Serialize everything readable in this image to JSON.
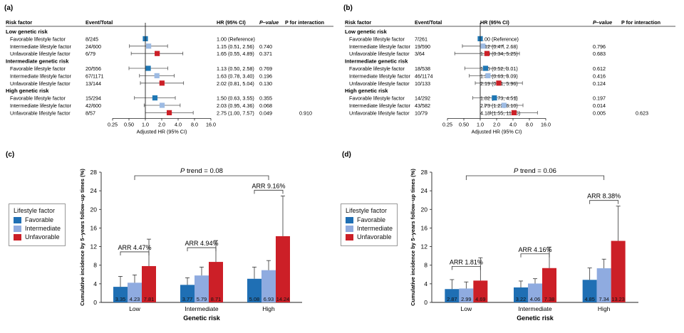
{
  "chart_data": [
    {
      "panel_label": "(a)",
      "type": "forest",
      "headers": {
        "risk_factor": "Risk factor",
        "events": "Event/Total",
        "hr": "HR (95% CI)",
        "p": "P–value",
        "pint": "P for interaction"
      },
      "xlabel": "Adjusted HR (95% CI)",
      "xscale": "log",
      "xticks": [
        "0.25",
        "0.50",
        "1.0",
        "2.0",
        "4.0",
        "8.0",
        "16.0"
      ],
      "xlim": [
        0.25,
        16
      ],
      "p_for_interaction": "0.910",
      "groups": [
        {
          "label": "Low genetic risk",
          "rows": [
            {
              "label": "Favorable lifestyle factor",
              "events": "8/245",
              "hr_text": "1.00 (Reference)",
              "p": "",
              "hr": 1.0,
              "lo": 1.0,
              "hi": 1.0,
              "color": "#1f77b4"
            },
            {
              "label": "Intermediate lifestyle factor",
              "events": "24/600",
              "hr_text": "1.15 (0.51, 2.56)",
              "p": "0.740",
              "hr": 1.15,
              "lo": 0.51,
              "hi": 2.56,
              "color": "#9dbbe3"
            },
            {
              "label": "Unfavorable lifestyle factor",
              "events": "6/79",
              "hr_text": "1.65 (0.55, 4.89)",
              "p": "0.371",
              "hr": 1.65,
              "lo": 0.55,
              "hi": 4.89,
              "color": "#cc2027"
            }
          ]
        },
        {
          "label": "Intermediate genetic risk",
          "rows": [
            {
              "label": "Favorable lifestyle factor",
              "events": "20/556",
              "hr_text": "1.13 (0.50, 2.58)",
              "p": "0.769",
              "hr": 1.13,
              "lo": 0.5,
              "hi": 2.58,
              "color": "#1f77b4"
            },
            {
              "label": "Intermediate lifestyle factor",
              "events": "67/1171",
              "hr_text": "1.63 (0.78, 3.40)",
              "p": "0.196",
              "hr": 1.63,
              "lo": 0.78,
              "hi": 3.4,
              "color": "#9dbbe3"
            },
            {
              "label": "Unfavorable lifestyle factor",
              "events": "13/144",
              "hr_text": "2.02 (0.81, 5.04)",
              "p": "0.130",
              "hr": 2.02,
              "lo": 0.81,
              "hi": 5.04,
              "color": "#cc2027"
            }
          ]
        },
        {
          "label": "High genetic risk",
          "rows": [
            {
              "label": "Favorable lifestyle factor",
              "events": "15/294",
              "hr_text": "1.50 (0.63, 3.55)",
              "p": "0.355",
              "hr": 1.5,
              "lo": 0.63,
              "hi": 3.55,
              "color": "#1f77b4"
            },
            {
              "label": "Intermediate lifestyle factor",
              "events": "42/600",
              "hr_text": "2.03 (0.95, 4.36)",
              "p": "0.068",
              "hr": 2.03,
              "lo": 0.95,
              "hi": 4.36,
              "color": "#9dbbe3"
            },
            {
              "label": "Unfavorable lifestyle factor",
              "events": "8/57",
              "hr_text": "2.75 (1.00, 7.57)",
              "p": "0.049",
              "hr": 2.75,
              "lo": 1.0,
              "hi": 7.57,
              "color": "#cc2027"
            }
          ]
        }
      ]
    },
    {
      "panel_label": "(b)",
      "type": "forest",
      "headers": {
        "risk_factor": "Risk factor",
        "events": "Event/Total",
        "hr": "HR (95% CI)",
        "p": "P–value",
        "pint": "P for interaction"
      },
      "xlabel": "Adjusted HR (95% CI)",
      "xscale": "log",
      "xticks": [
        "0.25",
        "0.50",
        "1.0",
        "2.0",
        "4.0",
        "8.0",
        "16.0"
      ],
      "xlim": [
        0.25,
        16
      ],
      "p_for_interaction": "0.623",
      "groups": [
        {
          "label": "Low genetic risk",
          "rows": [
            {
              "label": "Favorable lifestyle factor",
              "events": "7/261",
              "hr_text": "1.00 (Reference)",
              "p": "",
              "hr": 1.0,
              "lo": 1.0,
              "hi": 1.0,
              "color": "#1f77b4"
            },
            {
              "label": "Intermediate lifestyle factor",
              "events": "19/590",
              "hr_text": "1.12 (0.47, 2.68)",
              "p": "0.796",
              "hr": 1.12,
              "lo": 0.47,
              "hi": 2.68,
              "color": "#9dbbe3"
            },
            {
              "label": "Unfavorable lifestyle factor",
              "events": "3/64",
              "hr_text": "1.33 (0.34, 5.25)",
              "p": "0.683",
              "hr": 1.33,
              "lo": 0.34,
              "hi": 5.25,
              "color": "#cc2027"
            }
          ]
        },
        {
          "label": "Intermediate genetic risk",
          "rows": [
            {
              "label": "Favorable lifestyle factor",
              "events": "18/538",
              "hr_text": "1.25 (0.52, 3.01)",
              "p": "0.612",
              "hr": 1.25,
              "lo": 0.52,
              "hi": 3.01,
              "color": "#1f77b4"
            },
            {
              "label": "Intermediate lifestyle factor",
              "events": "46/1174",
              "hr_text": "1.39 (0.63, 3.09)",
              "p": "0.416",
              "hr": 1.39,
              "lo": 0.63,
              "hi": 3.09,
              "color": "#9dbbe3"
            },
            {
              "label": "Unfavorable lifestyle factor",
              "events": "10/133",
              "hr_text": "2.19 (0.81, 5.96)",
              "p": "0.124",
              "hr": 2.19,
              "lo": 0.81,
              "hi": 5.96,
              "color": "#cc2027"
            }
          ]
        },
        {
          "label": "High genetic risk",
          "rows": [
            {
              "label": "Favorable lifestyle factor",
              "events": "14/292",
              "hr_text": "1.82 (0.73, 4.51)",
              "p": "0.197",
              "hr": 1.82,
              "lo": 0.73,
              "hi": 4.51,
              "color": "#1f77b4"
            },
            {
              "label": "Intermediate lifestyle factor",
              "events": "43/582",
              "hr_text": "2.73 (1.22, 6.10)",
              "p": "0.014",
              "hr": 2.73,
              "lo": 1.22,
              "hi": 6.1,
              "color": "#9dbbe3"
            },
            {
              "label": "Unfavorable lifestyle factor",
              "events": "10/79",
              "hr_text": "4.18 (1.55, 11.25)",
              "p": "0.005",
              "hr": 4.18,
              "lo": 1.55,
              "hi": 11.25,
              "color": "#cc2027"
            }
          ]
        }
      ]
    },
    {
      "panel_label": "(c)",
      "type": "bar",
      "xlabel": "Genetic risk",
      "ylabel": "Cumulative incidence by 5–years follow–up times (%)",
      "ylim": [
        0,
        28
      ],
      "yticks": [
        0,
        4,
        8,
        12,
        16,
        20,
        24,
        28
      ],
      "categories": [
        "Low",
        "Intermediate",
        "High"
      ],
      "series": [
        {
          "name": "Favorable",
          "color": "#1f6fb4",
          "values": [
            3.35,
            3.77,
            5.08
          ],
          "err_hi": [
            5.6,
            5.3,
            7.6
          ]
        },
        {
          "name": "Intermediate",
          "color": "#8fabe0",
          "values": [
            4.23,
            5.79,
            6.93
          ],
          "err_hi": [
            5.9,
            7.6,
            9.0
          ]
        },
        {
          "name": "Unfavorable",
          "color": "#cc1f27",
          "values": [
            7.81,
            8.71,
            14.24
          ],
          "err_hi": [
            13.6,
            13.3,
            22.9
          ]
        }
      ],
      "legend": {
        "title": "Lifestyle factor",
        "placement": "left"
      },
      "annotations": {
        "trend": "P trend = 0.08",
        "arr": [
          "ARR 4.47%",
          "ARR 4.94%",
          "ARR 9.16%"
        ]
      }
    },
    {
      "panel_label": "(d)",
      "type": "bar",
      "xlabel": "Genetic risk",
      "ylabel": "Cumulative incidence by 5–years follow–up times (%)",
      "ylim": [
        0,
        28
      ],
      "yticks": [
        0,
        4,
        8,
        12,
        16,
        20,
        24,
        28
      ],
      "categories": [
        "Low",
        "Intermediate",
        "High"
      ],
      "series": [
        {
          "name": "Favorable",
          "color": "#1f6fb4",
          "values": [
            2.87,
            3.22,
            4.85
          ],
          "err_hi": [
            4.9,
            4.6,
            7.4
          ]
        },
        {
          "name": "Intermediate",
          "color": "#8fabe0",
          "values": [
            2.99,
            4.06,
            7.34
          ],
          "err_hi": [
            4.4,
            5.1,
            9.3
          ]
        },
        {
          "name": "Unfavorable",
          "color": "#cc1f27",
          "values": [
            4.69,
            7.38,
            13.23
          ],
          "err_hi": [
            9.6,
            11.9,
            20.7
          ]
        }
      ],
      "legend": {
        "title": "Lifestyle factor",
        "placement": "left"
      },
      "annotations": {
        "trend": "P trend = 0.06",
        "arr": [
          "ARR 1.81%",
          "ARR 4.16%",
          "ARR 8.38%"
        ]
      }
    }
  ]
}
